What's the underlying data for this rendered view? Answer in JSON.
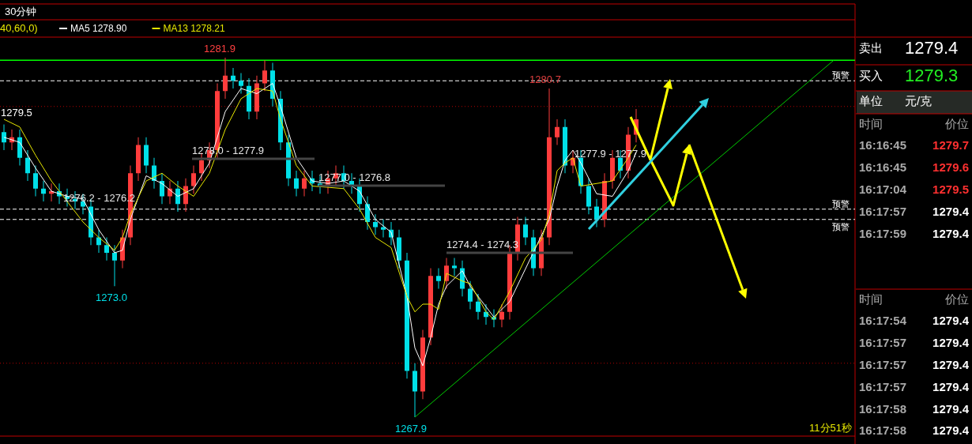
{
  "chart_data": {
    "type": "candlestick",
    "title": "30分钟",
    "legend": "top left",
    "categories": [
      null,
      null,
      null,
      null,
      null,
      null,
      null,
      null,
      null,
      null,
      null,
      null,
      null,
      null,
      null,
      null,
      null,
      null,
      null,
      null,
      null,
      null,
      null,
      null,
      null,
      null,
      null,
      null,
      null,
      null,
      null,
      null,
      null,
      null,
      null,
      null,
      null,
      null,
      null,
      null,
      null,
      null,
      null,
      null,
      null,
      null,
      null,
      null,
      null,
      null,
      null,
      null,
      null,
      null,
      null,
      null,
      null,
      null,
      null,
      null,
      null,
      null,
      null,
      null,
      null,
      null,
      null,
      null,
      null,
      null,
      null,
      null,
      null,
      null,
      null,
      null,
      null,
      null,
      null,
      null,
      null,
      null,
      null,
      null,
      null,
      null,
      null,
      null,
      null,
      null,
      null,
      null,
      null,
      null,
      null,
      null,
      null,
      null,
      null,
      null,
      null,
      null,
      null,
      null,
      null,
      null
    ],
    "ohlc": [
      [
        1279.0,
        1279.3,
        1278.3,
        1278.6
      ],
      [
        1278.6,
        1279.1,
        1278.3,
        1278.8
      ],
      [
        1278.8,
        1279.1,
        1277.7,
        1278.0
      ],
      [
        1278.0,
        1278.3,
        1277.1,
        1277.4
      ],
      [
        1277.4,
        1277.7,
        1276.5,
        1276.8
      ],
      [
        1276.8,
        1277.1,
        1276.3,
        1276.6
      ],
      [
        1276.6,
        1277.0,
        1276.3,
        1276.7
      ],
      [
        1276.7,
        1277.0,
        1276.2,
        1276.5
      ],
      [
        1276.5,
        1276.8,
        1276.1,
        1276.4
      ],
      [
        1276.4,
        1276.7,
        1276.0,
        1276.3
      ],
      [
        1276.3,
        1276.6,
        1275.8,
        1276.1
      ],
      [
        1276.1,
        1276.4,
        1274.6,
        1274.9
      ],
      [
        1274.9,
        1275.2,
        1274.3,
        1274.6
      ],
      [
        1274.6,
        1274.9,
        1274.0,
        1274.3
      ],
      [
        1274.3,
        1274.6,
        1273.0,
        1274.0
      ],
      [
        1274.0,
        1275.2,
        1273.7,
        1274.9
      ],
      [
        1274.9,
        1277.7,
        1274.6,
        1277.4
      ],
      [
        1277.4,
        1278.8,
        1277.1,
        1278.5
      ],
      [
        1278.5,
        1278.8,
        1277.4,
        1277.7
      ],
      [
        1277.7,
        1278.0,
        1276.8,
        1277.1
      ],
      [
        1277.1,
        1277.4,
        1276.2,
        1276.5
      ],
      [
        1276.5,
        1277.1,
        1276.2,
        1276.8
      ],
      [
        1276.8,
        1277.1,
        1275.9,
        1276.2
      ],
      [
        1276.2,
        1277.2,
        1275.9,
        1276.9
      ],
      [
        1276.9,
        1277.7,
        1276.6,
        1277.4
      ],
      [
        1277.4,
        1278.2,
        1277.1,
        1277.9
      ],
      [
        1277.9,
        1278.6,
        1277.6,
        1278.3
      ],
      [
        1278.3,
        1280.9,
        1278.0,
        1280.6
      ],
      [
        1280.6,
        1281.9,
        1280.3,
        1281.2
      ],
      [
        1281.2,
        1281.5,
        1280.7,
        1281.0
      ],
      [
        1281.0,
        1281.3,
        1280.5,
        1280.8
      ],
      [
        1280.8,
        1281.1,
        1279.5,
        1279.8
      ],
      [
        1279.8,
        1281.2,
        1279.5,
        1280.9
      ],
      [
        1280.9,
        1281.8,
        1280.6,
        1281.4
      ],
      [
        1281.4,
        1281.7,
        1280.0,
        1280.3
      ],
      [
        1280.3,
        1280.6,
        1278.3,
        1278.6
      ],
      [
        1278.6,
        1278.9,
        1276.9,
        1277.2
      ],
      [
        1277.2,
        1277.5,
        1276.5,
        1276.8
      ],
      [
        1276.8,
        1277.5,
        1276.5,
        1277.2
      ],
      [
        1277.2,
        1277.5,
        1276.7,
        1277.0
      ],
      [
        1277.0,
        1277.3,
        1276.6,
        1276.9
      ],
      [
        1276.9,
        1277.5,
        1276.6,
        1277.2
      ],
      [
        1277.2,
        1277.7,
        1276.9,
        1277.4
      ],
      [
        1277.4,
        1277.7,
        1276.8,
        1277.1
      ],
      [
        1277.1,
        1277.4,
        1276.6,
        1276.9
      ],
      [
        1276.9,
        1277.2,
        1275.9,
        1276.2
      ],
      [
        1276.2,
        1276.5,
        1275.2,
        1275.5
      ],
      [
        1275.5,
        1275.8,
        1275.0,
        1275.3
      ],
      [
        1275.3,
        1275.6,
        1274.9,
        1275.2
      ],
      [
        1275.2,
        1275.5,
        1274.6,
        1274.9
      ],
      [
        1274.9,
        1275.2,
        1273.7,
        1274.0
      ],
      [
        1274.0,
        1274.3,
        1269.4,
        1269.7
      ],
      [
        1269.7,
        1270.0,
        1267.9,
        1268.9
      ],
      [
        1268.9,
        1271.3,
        1268.6,
        1271.0
      ],
      [
        1271.0,
        1273.7,
        1270.7,
        1273.4
      ],
      [
        1273.4,
        1273.7,
        1272.9,
        1273.2
      ],
      [
        1273.2,
        1274.1,
        1272.9,
        1273.8
      ],
      [
        1273.8,
        1274.1,
        1273.4,
        1273.7
      ],
      [
        1273.7,
        1274.0,
        1272.6,
        1272.9
      ],
      [
        1272.9,
        1273.2,
        1272.1,
        1272.4
      ],
      [
        1272.4,
        1272.7,
        1271.7,
        1272.0
      ],
      [
        1272.0,
        1272.3,
        1271.5,
        1271.8
      ],
      [
        1271.8,
        1272.1,
        1271.4,
        1271.7
      ],
      [
        1271.7,
        1272.3,
        1271.4,
        1272.0
      ],
      [
        1272.0,
        1274.6,
        1271.7,
        1274.3
      ],
      [
        1274.3,
        1275.7,
        1274.0,
        1275.4
      ],
      [
        1275.4,
        1275.7,
        1274.6,
        1274.9
      ],
      [
        1274.9,
        1275.2,
        1273.4,
        1273.7
      ],
      [
        1273.7,
        1275.2,
        1273.4,
        1274.9
      ],
      [
        1274.9,
        1280.7,
        1274.6,
        1278.8
      ],
      [
        1278.8,
        1279.5,
        1278.5,
        1279.2
      ],
      [
        1279.2,
        1279.5,
        1277.4,
        1277.7
      ],
      [
        1277.7,
        1278.3,
        1277.4,
        1278.0
      ],
      [
        1278.0,
        1278.3,
        1276.6,
        1276.9
      ],
      [
        1276.9,
        1277.2,
        1275.8,
        1276.1
      ],
      [
        1276.1,
        1276.4,
        1275.3,
        1275.6
      ],
      [
        1275.6,
        1277.4,
        1275.3,
        1277.1
      ],
      [
        1277.1,
        1278.3,
        1276.8,
        1278.0
      ],
      [
        1278.0,
        1278.3,
        1277.2,
        1277.5
      ],
      [
        1277.5,
        1279.2,
        1277.2,
        1278.9
      ],
      [
        1278.9,
        1279.9,
        1278.6,
        1279.5
      ],
      null,
      null,
      null,
      null,
      null,
      null,
      null,
      null,
      null,
      null,
      null,
      null,
      null,
      null,
      null,
      null,
      null,
      null,
      null,
      null,
      null,
      null,
      null,
      null,
      null
    ],
    "series": [
      {
        "type": "line",
        "name": "MA5 1278.90",
        "color": "#ffffff",
        "values": [
          1278.8,
          null,
          1278.6,
          null,
          1277.6,
          null,
          1276.7,
          null,
          1276.5,
          null,
          1276.4,
          null,
          1275.2,
          null,
          1274.3,
          1274.4,
          1275.6,
          null,
          1277.3,
          null,
          1277.0,
          null,
          1276.5,
          null,
          1276.8,
          null,
          1277.8,
          null,
          1279.8,
          null,
          1280.7,
          null,
          1280.5,
          null,
          1280.9,
          1280.0,
          null,
          1278.0,
          null,
          1277.1,
          null,
          1277.0,
          null,
          1277.1,
          null,
          1276.7,
          null,
          1275.6,
          null,
          1275.1,
          null,
          1272.6,
          1270.6,
          1269.9,
          1271.0,
          1272.3,
          1273.0,
          null,
          1273.6,
          1273.0,
          null,
          1272.2,
          1271.8,
          null,
          1272.4,
          null,
          null,
          null,
          null,
          1275.6,
          1276.9,
          1277.9,
          1278.3,
          1277.8,
          null,
          1276.6,
          null,
          1276.5,
          null,
          1277.5,
          1278.2,
          null,
          null,
          null,
          null,
          null,
          null,
          null,
          null,
          null,
          null,
          null,
          null,
          null,
          null,
          null,
          null,
          null,
          null,
          null,
          null,
          null,
          null,
          null,
          null,
          null
        ]
      },
      {
        "type": "line",
        "name": "MA13 1278.21",
        "color": "#e8e800",
        "values": [
          1279.5,
          null,
          1279.2,
          null,
          1278.1,
          null,
          1277.1,
          null,
          1276.3,
          null,
          1275.5,
          null,
          1274.9,
          null,
          1274.4,
          1274.9,
          1275.8,
          null,
          1277.1,
          null,
          1277.4,
          null,
          1276.9,
          null,
          1276.5,
          null,
          1277.4,
          null,
          1279.1,
          null,
          1280.3,
          null,
          1280.7,
          null,
          1280.6,
          1279.5,
          null,
          1277.7,
          null,
          1276.9,
          null,
          null,
          null,
          1276.8,
          null,
          1276.0,
          null,
          1274.9,
          null,
          1274.5,
          null,
          1272.6,
          1272.0,
          1272.3,
          1272.3,
          1272.1,
          1273.5,
          null,
          1273.2,
          1273.1,
          null,
          1272.0,
          1271.7,
          null,
          1272.8,
          null,
          1274.1,
          null,
          1274.8,
          1275.8,
          1277.5,
          1277.8,
          1278.0,
          1276.9,
          null,
          1277.0,
          null,
          1277.1,
          null,
          1278.0,
          1278.5,
          null,
          null,
          null,
          null,
          null,
          null,
          null,
          null,
          null,
          null,
          null,
          null,
          null,
          null,
          null,
          null,
          null,
          null,
          null,
          null,
          null,
          null,
          null,
          null,
          null
        ]
      },
      {
        "type": "line",
        "color": "#00cc00",
        "values": [
          null,
          null,
          null,
          null,
          null,
          null,
          null,
          null,
          null,
          null,
          null,
          null,
          null,
          null,
          null,
          null,
          null,
          null,
          null,
          null,
          null,
          null,
          null,
          null,
          null,
          null,
          null,
          null,
          null,
          null,
          null,
          null,
          null,
          null,
          null,
          null,
          null,
          null,
          null,
          null,
          null,
          null,
          null,
          null,
          null,
          null,
          null,
          null,
          null,
          null,
          null,
          null,
          1267.9,
          null,
          null,
          null,
          null,
          null,
          null,
          null,
          null,
          null,
          null,
          null,
          null,
          null,
          null,
          null,
          null,
          null,
          null,
          null,
          null,
          null,
          null,
          null,
          null,
          null,
          null,
          null,
          null,
          null,
          null,
          null,
          null,
          null,
          null,
          null,
          null,
          null,
          null,
          null,
          null,
          null,
          null,
          null,
          null,
          null,
          null,
          null,
          null,
          null,
          null,
          null,
          null,
          1281.8
        ]
      }
    ],
    "ref_lines": [
      {
        "axis": "y",
        "value": 1281.8,
        "color": "#00ff00",
        "line_style": "solid"
      },
      {
        "axis": "y",
        "value": 1281.0,
        "label": "预警",
        "color": "#ffffff",
        "line_style": "dashed"
      },
      {
        "axis": "y",
        "value": 1280.0,
        "color": "#b00000",
        "line_style": "dotted"
      },
      {
        "axis": "y",
        "value": 1276.0,
        "label": "预警",
        "color": "#ffffff",
        "line_style": "dashed"
      },
      {
        "axis": "y",
        "value": 1275.6,
        "label": "预警",
        "color": "#ffffff",
        "line_style": "dashed"
      },
      {
        "axis": "y",
        "value": 1270.0,
        "color": "#b00000",
        "line_style": "dotted"
      }
    ],
    "annotations": [
      "40,60,0)",
      "11分51秒",
      "1281.9",
      "1273.0",
      "1267.9",
      "1280.7",
      "1279.5",
      "1276.2 - 1276.2",
      "1278.0 - 1277.9",
      "1277.0 - 1276.8",
      "1274.4 - 1274.3",
      "1277.9 - 1277.9",
      "卖出",
      "1279.4",
      "买入",
      "1279.3",
      "单位",
      "元/克",
      "时间",
      "价位",
      "16:16:45",
      "1279.7",
      "16:16:45",
      "1279.6",
      "16:17:04",
      "1279.5",
      "16:17:57",
      "1279.4",
      "16:17:59",
      "1279.4",
      "时间",
      "价位",
      "16:17:54",
      "1279.4",
      "16:17:57",
      "1279.4",
      "16:17:57",
      "1279.4",
      "16:17:57",
      "1279.4",
      "16:17:58",
      "1279.4",
      "16:17:58",
      "1279.4"
    ]
  }
}
